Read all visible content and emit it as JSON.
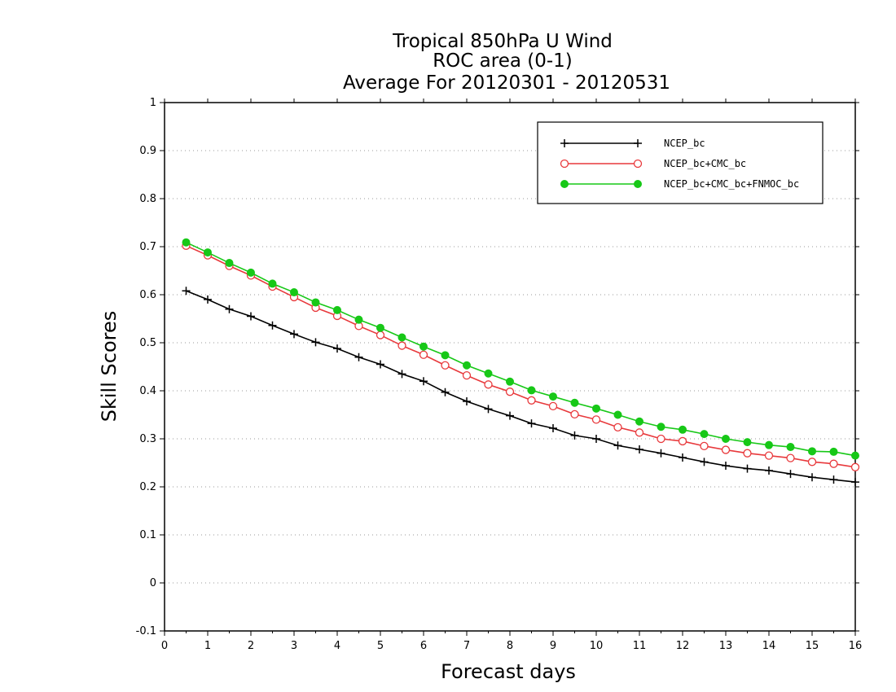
{
  "chart_data": {
    "type": "line",
    "title": [
      "Tropical 850hPa U Wind",
      "ROC area (0-1)",
      "Average For 20120301 - 20120531"
    ],
    "xlabel": "Forecast days",
    "ylabel": "Skill Scores",
    "xlim": [
      0,
      16
    ],
    "ylim": [
      -0.1,
      1
    ],
    "x_ticks": [
      0,
      1,
      2,
      3,
      4,
      5,
      6,
      7,
      8,
      9,
      10,
      11,
      12,
      13,
      14,
      15,
      16
    ],
    "y_ticks": [
      -0.1,
      0,
      0.1,
      0.2,
      0.3,
      0.4,
      0.5,
      0.6,
      0.7,
      0.8,
      0.9,
      1
    ],
    "y_tick_labels": [
      "-0.1",
      "0",
      "0.1",
      "0.2",
      "0.3",
      "0.4",
      "0.5",
      "0.6",
      "0.7",
      "0.8",
      "0.9",
      "1"
    ],
    "grid": "horizontal dotted",
    "legend_position": "top-right",
    "x": [
      0.5,
      1,
      1.5,
      2,
      2.5,
      3,
      3.5,
      4,
      4.5,
      5,
      5.5,
      6,
      6.5,
      7,
      7.5,
      8,
      8.5,
      9,
      9.5,
      10,
      10.5,
      11,
      11.5,
      12,
      12.5,
      13,
      13.5,
      14,
      14.5,
      15,
      15.5,
      16
    ],
    "series": [
      {
        "name": "NCEP_bc",
        "color": "#000000",
        "marker": "plus",
        "values": [
          0.608,
          0.59,
          0.57,
          0.555,
          0.536,
          0.518,
          0.501,
          0.488,
          0.47,
          0.455,
          0.435,
          0.42,
          0.397,
          0.378,
          0.362,
          0.348,
          0.332,
          0.322,
          0.307,
          0.3,
          0.286,
          0.278,
          0.27,
          0.261,
          0.252,
          0.244,
          0.238,
          0.234,
          0.227,
          0.22,
          0.215,
          0.21
        ]
      },
      {
        "name": "NCEP_bc+CMC_bc",
        "color": "#e8393c",
        "marker": "open-circle",
        "values": [
          0.702,
          0.682,
          0.66,
          0.64,
          0.617,
          0.595,
          0.573,
          0.556,
          0.535,
          0.516,
          0.494,
          0.475,
          0.453,
          0.432,
          0.413,
          0.398,
          0.38,
          0.368,
          0.351,
          0.34,
          0.324,
          0.313,
          0.3,
          0.295,
          0.285,
          0.277,
          0.27,
          0.265,
          0.26,
          0.252,
          0.248,
          0.241
        ]
      },
      {
        "name": "NCEP_bc+CMC_bc+FNMOC_bc",
        "color": "#17c817",
        "marker": "filled-circle",
        "values": [
          0.709,
          0.688,
          0.666,
          0.646,
          0.623,
          0.605,
          0.584,
          0.568,
          0.548,
          0.531,
          0.511,
          0.492,
          0.474,
          0.453,
          0.436,
          0.419,
          0.401,
          0.388,
          0.375,
          0.363,
          0.35,
          0.336,
          0.325,
          0.319,
          0.31,
          0.3,
          0.293,
          0.287,
          0.283,
          0.274,
          0.273,
          0.265
        ]
      }
    ]
  }
}
